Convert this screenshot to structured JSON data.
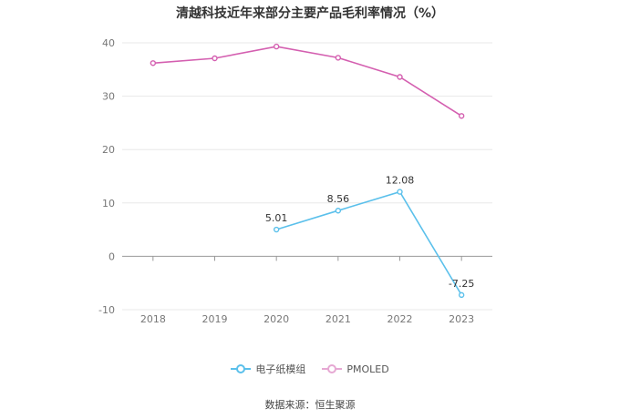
{
  "chart_data": {
    "type": "line",
    "title": "清越科技近年来部分主要产品毛利率情况（%）",
    "x": [
      "2018",
      "2019",
      "2020",
      "2021",
      "2022",
      "2023"
    ],
    "ylim": [
      -10,
      40
    ],
    "yticks": [
      "40",
      "30",
      "20",
      "10",
      "0",
      "-10"
    ],
    "grid": true,
    "legend_position": "bottom",
    "series": [
      {
        "name": "电子纸模组",
        "color": "#5bc0eb",
        "values": [
          null,
          null,
          5.01,
          8.56,
          12.08,
          -7.25
        ],
        "labels": [
          "",
          "",
          "5.01",
          "8.56",
          "12.08",
          "-7.25"
        ]
      },
      {
        "name": "PMOLED",
        "color": "#d45fb0",
        "values": [
          36.2,
          37.1,
          39.3,
          37.2,
          33.6,
          26.3
        ],
        "labels": [
          "",
          "",
          "",
          "",
          "",
          ""
        ]
      }
    ]
  },
  "source": "数据来源：恒生聚源"
}
